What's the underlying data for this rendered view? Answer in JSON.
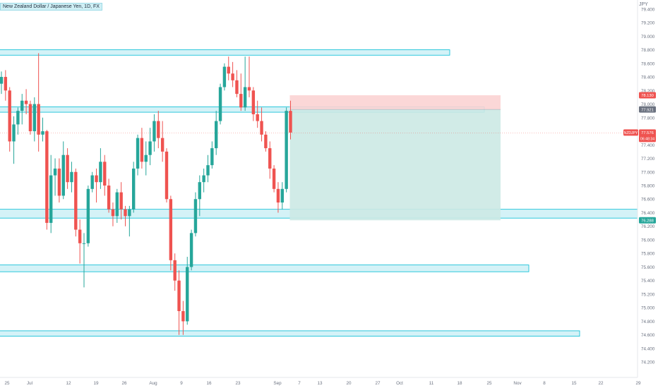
{
  "header": {
    "title": "New Zealand Dollar / Japanese Yen, 1D, FX",
    "currency": "JPY"
  },
  "chart_data": {
    "type": "candlestick",
    "symbol": "NZDJPY",
    "y_ticks": [
      "79.400",
      "79.200",
      "79.000",
      "78.800",
      "78.600",
      "78.400",
      "78.200",
      "78.000",
      "77.800",
      "77.600",
      "77.400",
      "77.200",
      "77.000",
      "76.800",
      "76.600",
      "76.400",
      "76.200",
      "76.000",
      "75.800",
      "75.600",
      "75.400",
      "75.200",
      "75.000",
      "74.800",
      "74.600",
      "74.400",
      "74.200"
    ],
    "ylim": [
      74.15,
      79.45
    ],
    "x_ticks": [
      "25",
      "Jul",
      "12",
      "19",
      "26",
      "Aug",
      "9",
      "16",
      "23",
      "Sep",
      "7",
      "13",
      "20",
      "27",
      "Oct",
      "11",
      "18",
      "25",
      "Nov",
      "8",
      "15",
      "22",
      "29"
    ],
    "price_labels": {
      "stop": "78.130",
      "entry": "77.921",
      "current": "77.576",
      "current_symbol": "NZDJPY",
      "countdown": "06:48:34",
      "target": "76.288"
    },
    "colors": {
      "up": "#26a69a",
      "down": "#ef5350",
      "zone": "#00bcd4",
      "zone_fill": "#cdf0f6",
      "profit": "#cce9e4",
      "loss": "#fbd3d3"
    },
    "candles": [
      {
        "o": 78.3,
        "h": 78.48,
        "l": 78.15,
        "c": 78.4
      },
      {
        "o": 78.4,
        "h": 78.5,
        "l": 78.05,
        "c": 78.2
      },
      {
        "o": 78.2,
        "h": 78.25,
        "l": 77.3,
        "c": 77.45
      },
      {
        "o": 77.45,
        "h": 77.82,
        "l": 77.12,
        "c": 77.7
      },
      {
        "o": 77.7,
        "h": 77.95,
        "l": 77.55,
        "c": 77.9
      },
      {
        "o": 77.9,
        "h": 78.15,
        "l": 77.7,
        "c": 78.05
      },
      {
        "o": 78.05,
        "h": 78.22,
        "l": 77.85,
        "c": 78.0
      },
      {
        "o": 78.0,
        "h": 78.05,
        "l": 77.55,
        "c": 77.6
      },
      {
        "o": 77.6,
        "h": 78.1,
        "l": 77.45,
        "c": 78.0
      },
      {
        "o": 78.0,
        "h": 78.75,
        "l": 77.3,
        "c": 77.55
      },
      {
        "o": 77.55,
        "h": 77.8,
        "l": 77.45,
        "c": 77.6
      },
      {
        "o": 77.6,
        "h": 77.62,
        "l": 76.15,
        "c": 76.25
      },
      {
        "o": 76.25,
        "h": 77.25,
        "l": 76.1,
        "c": 76.95
      },
      {
        "o": 76.95,
        "h": 77.2,
        "l": 76.65,
        "c": 77.05
      },
      {
        "o": 77.05,
        "h": 77.2,
        "l": 76.55,
        "c": 76.65
      },
      {
        "o": 76.65,
        "h": 77.45,
        "l": 76.6,
        "c": 77.25
      },
      {
        "o": 77.25,
        "h": 77.35,
        "l": 76.75,
        "c": 76.85
      },
      {
        "o": 76.85,
        "h": 77.15,
        "l": 76.7,
        "c": 77.0
      },
      {
        "o": 77.0,
        "h": 77.05,
        "l": 76.05,
        "c": 76.15
      },
      {
        "o": 76.15,
        "h": 76.3,
        "l": 75.65,
        "c": 75.95
      },
      {
        "o": 75.95,
        "h": 76.1,
        "l": 75.3,
        "c": 75.95
      },
      {
        "o": 75.95,
        "h": 76.8,
        "l": 75.9,
        "c": 76.75
      },
      {
        "o": 76.75,
        "h": 77.0,
        "l": 76.7,
        "c": 76.95
      },
      {
        "o": 76.95,
        "h": 77.05,
        "l": 76.55,
        "c": 76.85
      },
      {
        "o": 76.85,
        "h": 77.35,
        "l": 76.75,
        "c": 77.15
      },
      {
        "o": 77.15,
        "h": 77.25,
        "l": 76.65,
        "c": 76.8
      },
      {
        "o": 76.8,
        "h": 76.9,
        "l": 76.4,
        "c": 76.45
      },
      {
        "o": 76.45,
        "h": 76.55,
        "l": 76.2,
        "c": 76.35
      },
      {
        "o": 76.35,
        "h": 76.75,
        "l": 76.25,
        "c": 76.7
      },
      {
        "o": 76.7,
        "h": 76.85,
        "l": 76.3,
        "c": 76.45
      },
      {
        "o": 76.45,
        "h": 76.5,
        "l": 76.2,
        "c": 76.35
      },
      {
        "o": 76.35,
        "h": 76.5,
        "l": 76.05,
        "c": 76.45
      },
      {
        "o": 76.45,
        "h": 77.15,
        "l": 76.4,
        "c": 77.05
      },
      {
        "o": 77.05,
        "h": 77.55,
        "l": 76.95,
        "c": 77.5
      },
      {
        "o": 77.5,
        "h": 77.65,
        "l": 77.05,
        "c": 77.15
      },
      {
        "o": 77.15,
        "h": 77.45,
        "l": 76.95,
        "c": 77.25
      },
      {
        "o": 77.25,
        "h": 77.65,
        "l": 77.1,
        "c": 77.45
      },
      {
        "o": 77.45,
        "h": 77.85,
        "l": 77.3,
        "c": 77.75
      },
      {
        "o": 77.75,
        "h": 77.9,
        "l": 77.35,
        "c": 77.5
      },
      {
        "o": 77.5,
        "h": 77.75,
        "l": 77.15,
        "c": 77.3
      },
      {
        "o": 77.3,
        "h": 77.35,
        "l": 76.55,
        "c": 76.6
      },
      {
        "o": 76.6,
        "h": 76.65,
        "l": 75.55,
        "c": 75.7
      },
      {
        "o": 75.7,
        "h": 75.8,
        "l": 75.25,
        "c": 75.4
      },
      {
        "o": 75.4,
        "h": 75.55,
        "l": 74.6,
        "c": 74.95
      },
      {
        "o": 74.95,
        "h": 75.1,
        "l": 74.6,
        "c": 74.8
      },
      {
        "o": 74.8,
        "h": 75.75,
        "l": 74.75,
        "c": 75.6
      },
      {
        "o": 75.6,
        "h": 76.15,
        "l": 75.55,
        "c": 76.1
      },
      {
        "o": 76.1,
        "h": 76.7,
        "l": 76.05,
        "c": 76.6
      },
      {
        "o": 76.6,
        "h": 76.95,
        "l": 76.35,
        "c": 76.85
      },
      {
        "o": 76.85,
        "h": 77.05,
        "l": 76.7,
        "c": 76.95
      },
      {
        "o": 76.95,
        "h": 77.25,
        "l": 76.85,
        "c": 77.1
      },
      {
        "o": 77.1,
        "h": 77.45,
        "l": 77.05,
        "c": 77.35
      },
      {
        "o": 77.35,
        "h": 77.9,
        "l": 77.25,
        "c": 77.75
      },
      {
        "o": 77.75,
        "h": 78.3,
        "l": 77.7,
        "c": 78.25
      },
      {
        "o": 78.25,
        "h": 78.6,
        "l": 78.2,
        "c": 78.55
      },
      {
        "o": 78.55,
        "h": 78.7,
        "l": 78.35,
        "c": 78.45
      },
      {
        "o": 78.45,
        "h": 78.62,
        "l": 78.25,
        "c": 78.35
      },
      {
        "o": 78.35,
        "h": 78.5,
        "l": 78.1,
        "c": 78.15
      },
      {
        "o": 78.15,
        "h": 78.45,
        "l": 77.9,
        "c": 77.95
      },
      {
        "o": 77.95,
        "h": 78.7,
        "l": 77.9,
        "c": 78.25
      },
      {
        "o": 78.25,
        "h": 78.7,
        "l": 78.1,
        "c": 78.2
      },
      {
        "o": 78.2,
        "h": 78.25,
        "l": 77.75,
        "c": 77.85
      },
      {
        "o": 77.85,
        "h": 78.05,
        "l": 77.65,
        "c": 77.75
      },
      {
        "o": 77.75,
        "h": 77.95,
        "l": 77.45,
        "c": 77.55
      },
      {
        "o": 77.55,
        "h": 77.6,
        "l": 77.3,
        "c": 77.35
      },
      {
        "o": 77.35,
        "h": 77.45,
        "l": 76.9,
        "c": 77.05
      },
      {
        "o": 77.05,
        "h": 77.1,
        "l": 76.7,
        "c": 76.75
      },
      {
        "o": 76.75,
        "h": 76.85,
        "l": 76.4,
        "c": 76.55
      },
      {
        "o": 76.55,
        "h": 76.85,
        "l": 76.45,
        "c": 76.75
      },
      {
        "o": 76.75,
        "h": 77.95,
        "l": 76.7,
        "c": 77.9
      },
      {
        "o": 77.9,
        "h": 78.05,
        "l": 77.48,
        "c": 77.58
      }
    ],
    "zones": [
      {
        "top": 78.8,
        "bottom": 78.72,
        "end": "Oct 25"
      },
      {
        "top": 77.96,
        "bottom": 77.88,
        "end": "Oct 21"
      },
      {
        "top": 76.45,
        "bottom": 76.32,
        "end": "right"
      },
      {
        "top": 75.63,
        "bottom": 75.53,
        "end": "Nov 1"
      },
      {
        "top": 74.66,
        "bottom": 74.58,
        "end": "Nov 16"
      }
    ],
    "position": {
      "entry": 77.921,
      "stop": 78.13,
      "target": 76.288,
      "start": "Sep 24",
      "end": "Oct 27"
    }
  }
}
